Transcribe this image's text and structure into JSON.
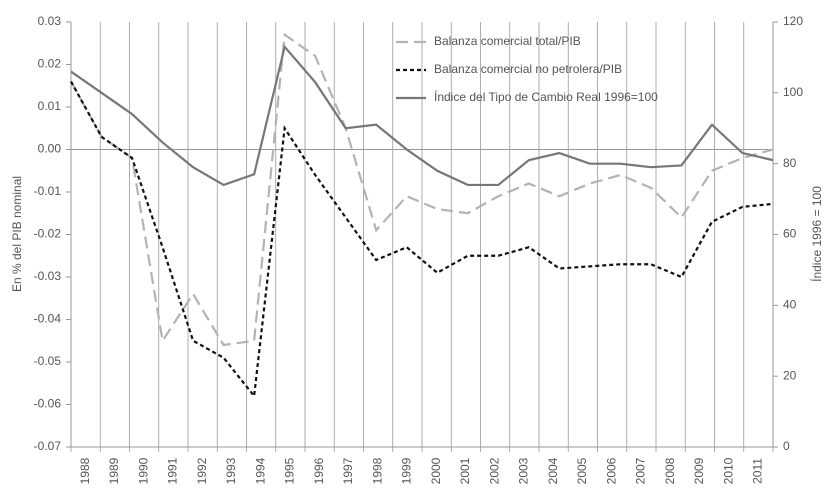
{
  "chart_data": {
    "type": "line",
    "categories": [
      "1988",
      "1989",
      "1990",
      "1991",
      "1992",
      "1993",
      "1994",
      "1995",
      "1996",
      "1997",
      "1998",
      "1999",
      "2000",
      "2001",
      "2002",
      "2003",
      "2004",
      "2005",
      "2006",
      "2007",
      "2008",
      "2009",
      "2010",
      "2011"
    ],
    "ylabel": "En % del PIB nominal",
    "y2label": "Índice 1996 = 100",
    "ylim": [
      -0.07,
      0.03
    ],
    "yticks": [
      -0.07,
      -0.06,
      -0.05,
      -0.04,
      -0.03,
      -0.02,
      -0.01,
      {
        "value": 0,
        "label": "0.00"
      },
      0.01,
      0.02,
      0.03
    ],
    "y2lim": [
      0,
      120
    ],
    "y2ticks": [
      0,
      20,
      40,
      60,
      80,
      100,
      120
    ],
    "grid": true,
    "legend": "top-right",
    "series": [
      {
        "name": "Balanza comercial total/PIB",
        "color": "#b3b3b3",
        "dash": "dashed",
        "values": [
          0.016,
          0.003,
          -0.002,
          -0.045,
          -0.034,
          -0.046,
          -0.045,
          0.027,
          0.022,
          0.005,
          -0.019,
          -0.011,
          -0.014,
          -0.015,
          -0.011,
          -0.008,
          -0.011,
          -0.008,
          -0.006,
          -0.009,
          -0.016,
          -0.005,
          -0.002,
          0.0
        ]
      },
      {
        "name": "Balanza comercial no petrolera/PIB",
        "color": "#111111",
        "dash": "dotted",
        "values": [
          0.016,
          0.003,
          -0.002,
          -0.023,
          -0.045,
          -0.049,
          -0.058,
          0.005,
          -0.006,
          -0.016,
          -0.026,
          -0.023,
          -0.029,
          -0.025,
          -0.025,
          -0.023,
          -0.028,
          -0.0275,
          -0.027,
          -0.027,
          -0.03,
          -0.017,
          -0.0135,
          -0.0128
        ]
      },
      {
        "name": "Índice del Tipo de Cambio Real 1996=100",
        "color": "#777777",
        "dash": "solid",
        "axis": "y2",
        "values": [
          106,
          100,
          94,
          86,
          79,
          74,
          77,
          113,
          103,
          90,
          91,
          84,
          78,
          74,
          74,
          81,
          83,
          80,
          80,
          79,
          79.5,
          91,
          83,
          81
        ]
      }
    ]
  }
}
